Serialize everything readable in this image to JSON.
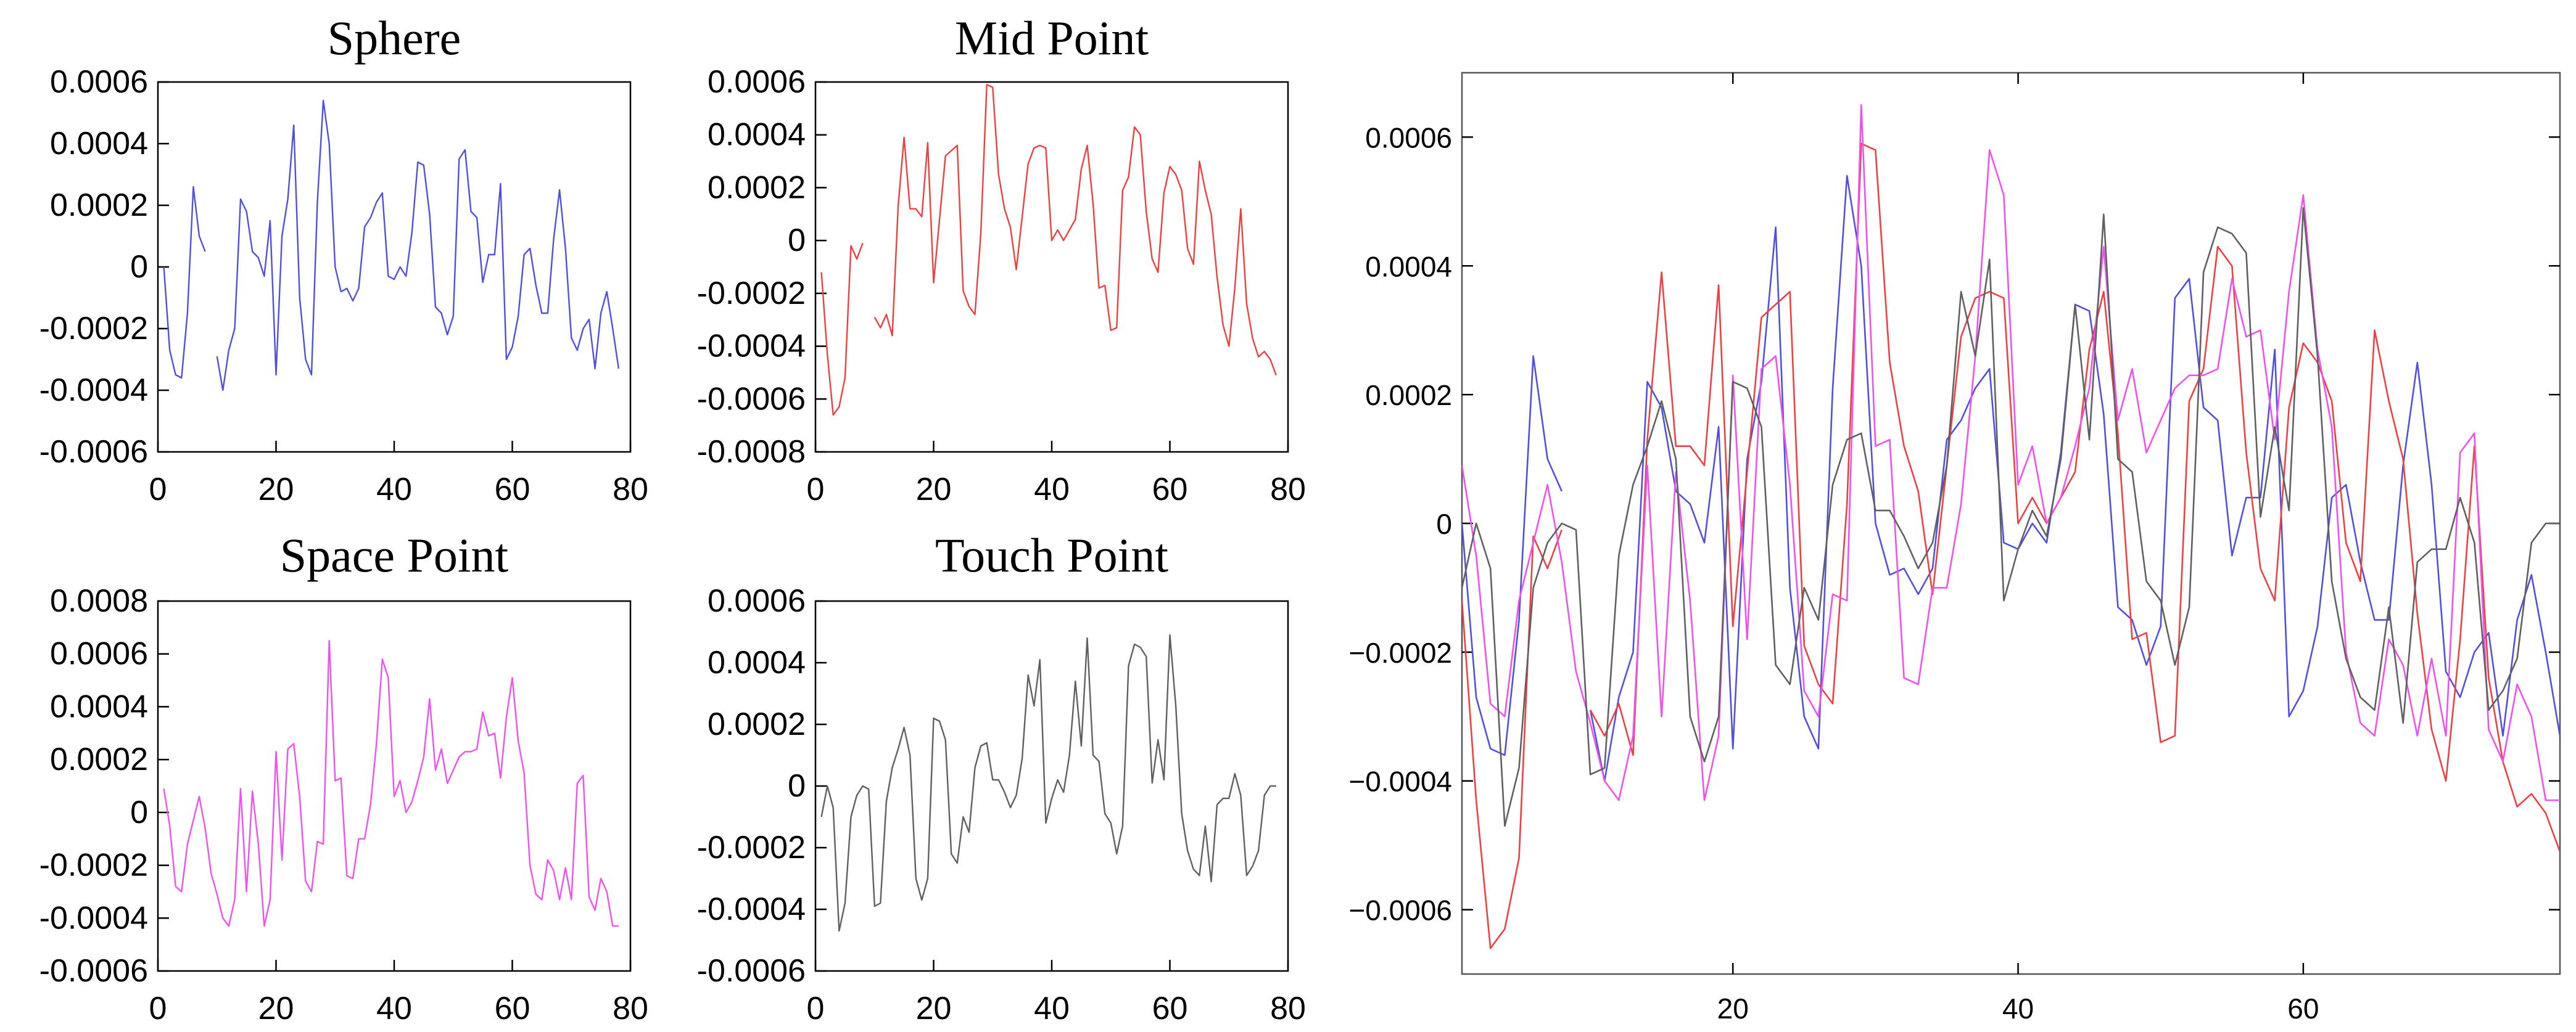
{
  "chart_data": [
    {
      "type": "line",
      "title": "Sphere",
      "color": "#5050e0",
      "xlim": [
        0,
        80
      ],
      "ylim": [
        -0.0006,
        0.0006
      ],
      "xticks": [
        0,
        20,
        40,
        60,
        80
      ],
      "yticks": [
        -0.0006,
        -0.0004,
        -0.0002,
        0,
        0.0002,
        0.0004,
        0.0006
      ],
      "xtick_labels": [
        "0",
        "20",
        "40",
        "60",
        "80"
      ],
      "ytick_labels": [
        "-0.0006",
        "-0.0004",
        "-0.0002",
        "0",
        "0.0002",
        "0.0004",
        "0.0006"
      ],
      "series": [
        {
          "x": [
            1,
            2,
            3,
            4,
            5,
            6,
            7,
            8
          ],
          "y": [
            0.0,
            -0.00027,
            -0.00035,
            -0.00036,
            -0.00015,
            0.00026,
            0.0001,
            5e-05
          ]
        },
        {
          "x": [
            10,
            11,
            12,
            13,
            14,
            15,
            16,
            17,
            18,
            19,
            20,
            21,
            22,
            23,
            24,
            25,
            26,
            27,
            28,
            29,
            30,
            31,
            32,
            33,
            34,
            35,
            36,
            37,
            38,
            39,
            40,
            41,
            42,
            43,
            44,
            45,
            46,
            47,
            48,
            49,
            50,
            51,
            52,
            53,
            54,
            55,
            56,
            57,
            58,
            59,
            60,
            61,
            62,
            63,
            64,
            65,
            66,
            67,
            68,
            69,
            70,
            71,
            72,
            73,
            74,
            75,
            76,
            77,
            78
          ],
          "y": [
            -0.00029,
            -0.0004,
            -0.00027,
            -0.0002,
            0.00022,
            0.00018,
            5e-05,
            3e-05,
            -3e-05,
            0.00015,
            -0.00035,
            0.0001,
            0.00022,
            0.00046,
            -0.0001,
            -0.0003,
            -0.00035,
            0.00021,
            0.00054,
            0.0004,
            0.0,
            -8e-05,
            -7e-05,
            -0.00011,
            -7e-05,
            0.00013,
            0.00016,
            0.00021,
            0.00024,
            -3e-05,
            -4e-05,
            0.0,
            -3e-05,
            0.00011,
            0.00034,
            0.00033,
            0.00017,
            -0.00013,
            -0.00015,
            -0.00022,
            -0.00016,
            0.00035,
            0.00038,
            0.00018,
            0.00016,
            -5e-05,
            4e-05,
            4e-05,
            0.00027,
            -0.0003,
            -0.00026,
            -0.00016,
            4e-05,
            6e-05,
            -6e-05,
            -0.00015,
            -0.00015,
            9e-05,
            0.00025,
            6e-05,
            -0.00023,
            -0.00027,
            -0.0002,
            -0.00017,
            -0.00033,
            -0.00015,
            -8e-05,
            -0.0002,
            -0.00033
          ]
        }
      ]
    },
    {
      "type": "line",
      "title": "Mid Point",
      "color": "#ee4040",
      "xlim": [
        0,
        80
      ],
      "ylim": [
        -0.0008,
        0.0006
      ],
      "xticks": [
        0,
        20,
        40,
        60,
        80
      ],
      "yticks": [
        -0.0008,
        -0.0006,
        -0.0004,
        -0.0002,
        0,
        0.0002,
        0.0004,
        0.0006
      ],
      "xtick_labels": [
        "0",
        "20",
        "40",
        "60",
        "80"
      ],
      "ytick_labels": [
        "-0.0008",
        "-0.0006",
        "-0.0004",
        "-0.0002",
        "0",
        "0.0002",
        "0.0004",
        "0.0006"
      ],
      "series": [
        {
          "x": [
            1,
            2,
            3,
            4,
            5,
            6,
            7,
            8
          ],
          "y": [
            -0.00012,
            -0.00043,
            -0.00066,
            -0.00063,
            -0.00052,
            -2e-05,
            -7e-05,
            -1e-05
          ]
        },
        {
          "x": [
            10,
            11,
            12,
            13,
            14,
            15,
            16,
            17,
            18,
            19,
            20,
            21,
            22,
            23,
            24,
            25,
            26,
            27,
            28,
            29,
            30,
            31,
            32,
            33,
            34,
            35,
            36,
            37,
            38,
            39,
            40,
            41,
            42,
            43,
            44,
            45,
            46,
            47,
            48,
            49,
            50,
            51,
            52,
            53,
            54,
            55,
            56,
            57,
            58,
            59,
            60,
            61,
            62,
            63,
            64,
            65,
            66,
            67,
            68,
            69,
            70,
            71,
            72,
            73,
            74,
            75,
            76,
            77,
            78
          ],
          "y": [
            -0.00029,
            -0.00033,
            -0.00028,
            -0.00036,
            0.00013,
            0.00039,
            0.00012,
            0.00012,
            9e-05,
            0.00037,
            -0.00016,
            8e-05,
            0.00032,
            0.00034,
            0.00036,
            -0.00019,
            -0.00025,
            -0.00028,
            3e-05,
            0.00059,
            0.00058,
            0.00025,
            0.00012,
            5e-05,
            -0.00011,
            9e-05,
            0.00029,
            0.00035,
            0.00036,
            0.00035,
            0.0,
            4e-05,
            0.0,
            4e-05,
            8e-05,
            0.00027,
            0.00036,
            0.00014,
            -0.00018,
            -0.00017,
            -0.00034,
            -0.00033,
            0.00019,
            0.00024,
            0.00043,
            0.0004,
            0.00011,
            -7e-05,
            -0.00012,
            0.00018,
            0.00028,
            0.00025,
            0.00019,
            -3e-05,
            -9e-05,
            0.0003,
            0.00019,
            0.0001,
            -0.00014,
            -0.00032,
            -0.0004,
            -0.00018,
            0.00012,
            -0.00024,
            -0.00037,
            -0.00044,
            -0.00042,
            -0.00045,
            -0.00051
          ]
        }
      ]
    },
    {
      "type": "line",
      "title": "Space Point",
      "color": "#f050f0",
      "xlim": [
        0,
        80
      ],
      "ylim": [
        -0.0006,
        0.0008
      ],
      "xticks": [
        0,
        20,
        40,
        60,
        80
      ],
      "yticks": [
        -0.0006,
        -0.0004,
        -0.0002,
        0,
        0.0002,
        0.0004,
        0.0006,
        0.0008
      ],
      "xtick_labels": [
        "0",
        "20",
        "40",
        "60",
        "80"
      ],
      "ytick_labels": [
        "-0.0006",
        "-0.0004",
        "-0.0002",
        "0",
        "0.0002",
        "0.0004",
        "0.0006",
        "0.0008"
      ],
      "series": [
        {
          "x": [
            1,
            2,
            3,
            4,
            5,
            6,
            7,
            8,
            9,
            10,
            11,
            12,
            13,
            14,
            15,
            16,
            17,
            18,
            19,
            20,
            21,
            22,
            23,
            24,
            25,
            26,
            27,
            28,
            29,
            30,
            31,
            32,
            33,
            34,
            35,
            36,
            37,
            38,
            39,
            40,
            41,
            42,
            43,
            44,
            45,
            46,
            47,
            48,
            49,
            50,
            51,
            52,
            53,
            54,
            55,
            56,
            57,
            58,
            59,
            60,
            61,
            62,
            63,
            64,
            65,
            66,
            67,
            68,
            69,
            70,
            71,
            72,
            73,
            74,
            75,
            76,
            77,
            78
          ],
          "y": [
            9e-05,
            -5e-05,
            -0.00028,
            -0.0003,
            -0.00012,
            -3e-05,
            6e-05,
            -6e-05,
            -0.00023,
            -0.00031,
            -0.0004,
            -0.00043,
            -0.00033,
            9e-05,
            -0.0003,
            8e-05,
            -0.00012,
            -0.00043,
            -0.00033,
            0.00023,
            -0.00018,
            0.00024,
            0.00026,
            6e-05,
            -0.00026,
            -0.0003,
            -0.00011,
            -0.00012,
            0.00065,
            0.00012,
            0.00013,
            -0.00024,
            -0.00025,
            -0.0001,
            -0.0001,
            3e-05,
            0.00026,
            0.00058,
            0.00051,
            6e-05,
            0.00012,
            0.0,
            4e-05,
            0.00012,
            0.00021,
            0.00043,
            0.00016,
            0.00024,
            0.00011,
            0.00016,
            0.00021,
            0.00023,
            0.00023,
            0.00024,
            0.00038,
            0.00029,
            0.0003,
            0.00013,
            0.00036,
            0.00051,
            0.00027,
            0.00015,
            -0.0002,
            -0.00031,
            -0.00033,
            -0.00018,
            -0.00022,
            -0.00033,
            -0.00021,
            -0.00033,
            0.00011,
            0.00014,
            -0.00032,
            -0.00037,
            -0.00025,
            -0.0003,
            -0.00043,
            -0.00043
          ]
        }
      ]
    },
    {
      "type": "line",
      "title": "Touch Point",
      "color": "#606060",
      "xlim": [
        0,
        80
      ],
      "ylim": [
        -0.0006,
        0.0006
      ],
      "xticks": [
        0,
        20,
        40,
        60,
        80
      ],
      "yticks": [
        -0.0006,
        -0.0004,
        -0.0002,
        0,
        0.0002,
        0.0004,
        0.0006
      ],
      "xtick_labels": [
        "0",
        "20",
        "40",
        "60",
        "80"
      ],
      "ytick_labels": [
        "-0.0006",
        "-0.0004",
        "-0.0002",
        "0",
        "0.0002",
        "0.0004",
        "0.0006"
      ],
      "series": [
        {
          "x": [
            1,
            2,
            3,
            4,
            5,
            6,
            7,
            8,
            9,
            10,
            11,
            12,
            13,
            14,
            15,
            16,
            17,
            18,
            19,
            20,
            21,
            22,
            23,
            24,
            25,
            26,
            27,
            28,
            29,
            30,
            31,
            32,
            33,
            34,
            35,
            36,
            37,
            38,
            39,
            40,
            41,
            42,
            43,
            44,
            45,
            46,
            47,
            48,
            49,
            50,
            51,
            52,
            53,
            54,
            55,
            56,
            57,
            58,
            59,
            60,
            61,
            62,
            63,
            64,
            65,
            66,
            67,
            68,
            69,
            70,
            71,
            72,
            73,
            74,
            75,
            76,
            77,
            78
          ],
          "y": [
            -0.0001,
            0.0,
            -7e-05,
            -0.00047,
            -0.00038,
            -0.0001,
            -3e-05,
            0.0,
            -1e-05,
            -0.00039,
            -0.00038,
            -5e-05,
            6e-05,
            0.00012,
            0.00019,
            0.0001,
            -0.0003,
            -0.00037,
            -0.0003,
            0.00022,
            0.00021,
            0.00015,
            -0.00022,
            -0.00025,
            -0.0001,
            -0.00015,
            6e-05,
            0.00013,
            0.00014,
            2e-05,
            2e-05,
            -2e-05,
            -7e-05,
            -3e-05,
            9e-05,
            0.00036,
            0.00026,
            0.00041,
            -0.00012,
            -4e-05,
            2e-05,
            -2e-05,
            0.0001,
            0.00034,
            0.00013,
            0.00048,
            0.0001,
            8e-05,
            -9e-05,
            -0.00012,
            -0.00022,
            -0.00013,
            0.00039,
            0.00046,
            0.00045,
            0.00042,
            1e-05,
            0.00015,
            2e-05,
            0.00049,
            0.00026,
            -9e-05,
            -0.00021,
            -0.00027,
            -0.00029,
            -0.00013,
            -0.00031,
            -6e-05,
            -4e-05,
            -4e-05,
            4e-05,
            -3e-05,
            -0.00029,
            -0.00026,
            -0.00021,
            -3e-05,
            0.0,
            0.0
          ]
        }
      ]
    },
    {
      "type": "line",
      "xlim": [
        1,
        78
      ],
      "ylim": [
        -0.0007,
        0.0007
      ],
      "xticks": [
        20,
        40,
        60
      ],
      "yticks": [
        -0.0006,
        -0.0004,
        -0.0002,
        0,
        0.0002,
        0.0004,
        0.0006
      ],
      "xtick_labels": [
        "20",
        "40",
        "60"
      ],
      "ytick_labels": [
        "−0.0006",
        "−0.0004",
        "−0.0002",
        "0",
        "0.0002",
        "0.0004",
        "0.0006"
      ],
      "overlay_of": [
        0,
        1,
        2,
        3
      ]
    }
  ]
}
